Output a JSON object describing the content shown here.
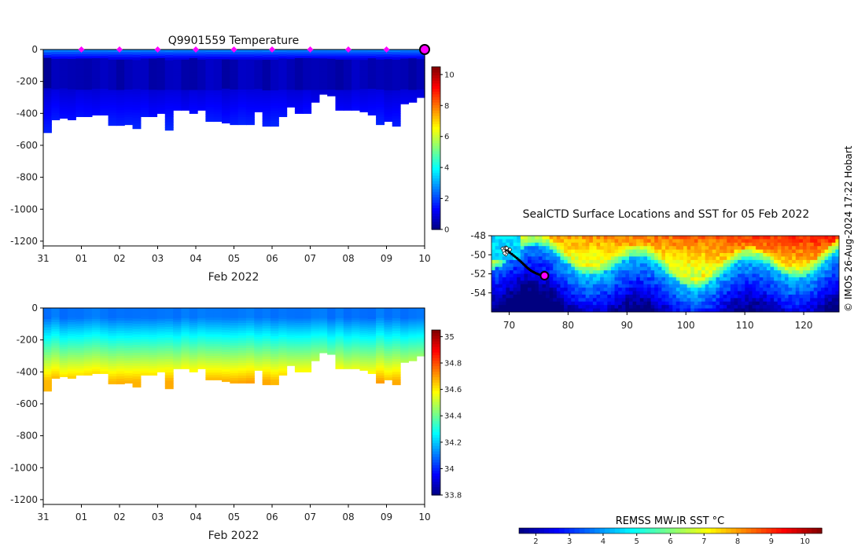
{
  "credit": "© IMOS 26-Aug-2024 17:22 Hobart",
  "chart_data": [
    {
      "id": "temperature",
      "type": "heatmap",
      "title": "Q9901559  Temperature",
      "xlabel": "Feb 2022",
      "x_tick_labels": [
        "31",
        "01",
        "02",
        "03",
        "04",
        "05",
        "06",
        "07",
        "08",
        "09",
        "10"
      ],
      "xlim": [
        0,
        10
      ],
      "ylim": [
        -1230,
        0
      ],
      "y_ticks": [
        0,
        -200,
        -400,
        -600,
        -800,
        -1000,
        -1200
      ],
      "colorbar": {
        "range": [
          0,
          10.5
        ],
        "ticks": [
          0,
          2,
          4,
          6,
          8,
          10
        ],
        "colormap": "jet"
      },
      "surface_markers_days": [
        1,
        2,
        3,
        4,
        5,
        6,
        7,
        8,
        9
      ],
      "latest_marker_day": 10,
      "profile_max_depth_m": [
        520,
        440,
        430,
        440,
        420,
        420,
        410,
        410,
        475,
        475,
        470,
        495,
        420,
        420,
        400,
        505,
        380,
        380,
        400,
        380,
        450,
        450,
        460,
        470,
        470,
        470,
        390,
        480,
        480,
        420,
        360,
        400,
        400,
        330,
        280,
        290,
        380,
        380,
        380,
        390,
        410,
        470,
        450,
        480,
        340,
        330,
        300
      ],
      "value_range_shown": [
        0,
        3
      ]
    },
    {
      "id": "salinity",
      "type": "heatmap",
      "title": "",
      "xlabel": "Feb 2022",
      "x_tick_labels": [
        "31",
        "01",
        "02",
        "03",
        "04",
        "05",
        "06",
        "07",
        "08",
        "09",
        "10"
      ],
      "xlim": [
        0,
        10
      ],
      "ylim": [
        -1230,
        0
      ],
      "y_ticks": [
        0,
        -200,
        -400,
        -600,
        -800,
        -1000,
        -1200
      ],
      "colorbar": {
        "range": [
          33.8,
          35.05
        ],
        "ticks": [
          33.8,
          34,
          34.2,
          34.4,
          34.6,
          34.8,
          35
        ],
        "tick_labels": [
          "33.8",
          "34",
          "34.2",
          "34.4",
          "34.6",
          "34.8",
          "35"
        ],
        "colormap": "jet"
      },
      "value_range_shown": [
        34.0,
        34.7
      ]
    },
    {
      "id": "sst_map",
      "type": "heatmap",
      "title": "SealCTD Surface Locations and SST for 05 Feb 2022",
      "x_tick_labels": [
        "70",
        "80",
        "90",
        "100",
        "110",
        "120"
      ],
      "x_ticks": [
        70,
        80,
        90,
        100,
        110,
        120
      ],
      "xlim": [
        67,
        126
      ],
      "y_tick_labels": [
        "-48",
        "-50",
        "-52",
        "-54"
      ],
      "y_ticks": [
        -48,
        -50,
        -52,
        -54
      ],
      "ylim": [
        -56,
        -48
      ],
      "track_start": [
        69.5,
        -49.5
      ],
      "track_end": [
        76,
        -52.2
      ],
      "colorbar": {
        "label": "REMSS MW-IR SST °C",
        "range": [
          1.5,
          10.5
        ],
        "ticks": [
          2,
          3,
          4,
          5,
          6,
          7,
          8,
          9,
          10
        ],
        "colormap": "jet"
      }
    }
  ]
}
